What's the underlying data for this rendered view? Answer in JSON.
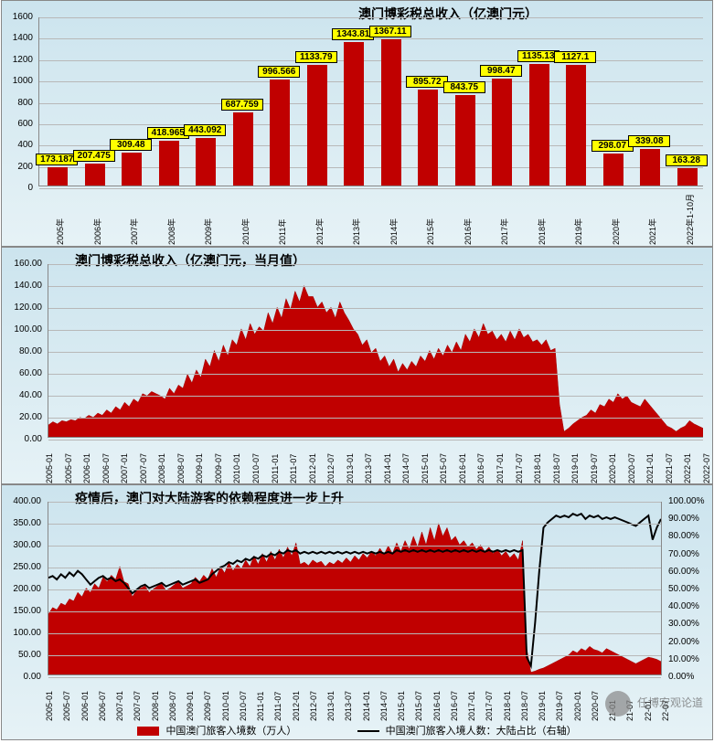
{
  "chart1": {
    "type": "bar",
    "title": "澳门博彩税总收入（亿澳门元）",
    "title_fontsize": 14,
    "ylim": [
      0,
      1600
    ],
    "ytick_step": 200,
    "categories": [
      "2005年",
      "2006年",
      "2007年",
      "2008年",
      "2009年",
      "2010年",
      "2011年",
      "2012年",
      "2013年",
      "2014年",
      "2015年",
      "2016年",
      "2017年",
      "2018年",
      "2019年",
      "2020年",
      "2021年",
      "2022年1-10月"
    ],
    "values": [
      173.187,
      207.475,
      309.48,
      418.965,
      443.092,
      687.759,
      996.566,
      1133.79,
      1343.81,
      1367.11,
      895.72,
      843.75,
      998.47,
      1135.13,
      1127.1,
      298.07,
      339.08,
      163.28
    ],
    "bar_color": "#c00000",
    "label_bg": "#ffff00",
    "label_border": "#000000",
    "grid_color": "#b8b8b8",
    "background_gradient": [
      "#cce4ee",
      "#e6f2f6"
    ],
    "label_fontsize": 10,
    "bar_width_ratio": 0.55
  },
  "chart2": {
    "type": "area",
    "title": "澳门博彩税总收入（亿澳门元，当月值）",
    "title_fontsize": 14,
    "ylim": [
      0.0,
      160.0
    ],
    "ytick_step": 20.0,
    "x_labels": [
      "2005-01",
      "2005-07",
      "2006-01",
      "2006-07",
      "2007-01",
      "2007-07",
      "2008-01",
      "2008-07",
      "2009-01",
      "2009-07",
      "2010-01",
      "2010-07",
      "2011-01",
      "2011-07",
      "2012-01",
      "2012-07",
      "2013-01",
      "2013-07",
      "2014-01",
      "2014-07",
      "2015-01",
      "2015-07",
      "2016-01",
      "2016-07",
      "2017-01",
      "2017-07",
      "2018-01",
      "2018-07",
      "2019-01",
      "2019-07",
      "2020-01",
      "2020-07",
      "2021-01",
      "2021-07",
      "2022-01",
      "2022-07"
    ],
    "values": [
      11,
      14,
      12,
      15,
      14,
      16,
      15,
      18,
      17,
      20,
      18,
      22,
      20,
      25,
      22,
      28,
      25,
      32,
      28,
      35,
      32,
      40,
      38,
      42,
      40,
      38,
      35,
      45,
      40,
      48,
      45,
      58,
      50,
      62,
      55,
      72,
      65,
      80,
      70,
      85,
      75,
      90,
      85,
      100,
      90,
      105,
      95,
      102,
      98,
      115,
      105,
      120,
      110,
      128,
      118,
      135,
      125,
      140,
      130,
      130,
      120,
      125,
      115,
      120,
      110,
      125,
      115,
      108,
      100,
      95,
      85,
      90,
      78,
      82,
      70,
      75,
      65,
      72,
      60,
      68,
      62,
      70,
      65,
      75,
      70,
      80,
      72,
      82,
      75,
      85,
      78,
      88,
      80,
      95,
      88,
      100,
      92,
      105,
      95,
      98,
      90,
      95,
      88,
      98,
      90,
      100,
      92,
      95,
      88,
      90,
      85,
      90,
      80,
      82,
      30,
      5,
      8,
      12,
      15,
      18,
      20,
      25,
      22,
      30,
      28,
      35,
      32,
      40,
      35,
      38,
      32,
      30,
      28,
      35,
      30,
      25,
      20,
      15,
      10,
      8,
      5,
      8,
      10,
      15,
      12,
      10,
      8
    ],
    "area_color": "#c00000",
    "grid_color": "#b8b8b8",
    "background_gradient": [
      "#cce4ee",
      "#e6f2f6"
    ]
  },
  "chart3": {
    "type": "area_with_line",
    "title": "疫情后，澳门对大陆游客的依赖程度进一步上升",
    "title_fontsize": 14,
    "ylim_left": [
      0.0,
      400.0
    ],
    "ytick_step_left": 50.0,
    "ylim_right": [
      0.0,
      100.0
    ],
    "ytick_step_right": 10.0,
    "right_y_format": "percent",
    "x_labels": [
      "2005-01",
      "2005-07",
      "2006-01",
      "2006-07",
      "2007-01",
      "2007-07",
      "2008-01",
      "2008-07",
      "2009-01",
      "2009-07",
      "2010-01",
      "2010-07",
      "2011-01",
      "2011-07",
      "2012-01",
      "2012-07",
      "2013-01",
      "2013-07",
      "2014-01",
      "2014-07",
      "2015-01",
      "2015-07",
      "2016-01",
      "2016-07",
      "2017-01",
      "2017-07",
      "2018-01",
      "2018-07",
      "2019-01",
      "2019-07",
      "2020-01",
      "2020-07",
      "21-01",
      "21-07",
      "22-01",
      "22-07"
    ],
    "area_values": [
      140,
      155,
      150,
      165,
      160,
      175,
      170,
      190,
      180,
      200,
      190,
      210,
      200,
      225,
      215,
      230,
      220,
      250,
      215,
      210,
      180,
      195,
      200,
      205,
      190,
      198,
      205,
      210,
      195,
      200,
      208,
      215,
      200,
      205,
      210,
      225,
      215,
      230,
      220,
      245,
      225,
      250,
      235,
      260,
      240,
      255,
      245,
      265,
      250,
      275,
      255,
      280,
      260,
      285,
      265,
      290,
      270,
      295,
      275,
      305,
      255,
      260,
      252,
      265,
      258,
      262,
      250,
      260,
      255,
      265,
      258,
      270,
      260,
      275,
      265,
      280,
      270,
      285,
      275,
      292,
      278,
      298,
      280,
      305,
      285,
      310,
      290,
      320,
      295,
      330,
      300,
      340,
      310,
      350,
      320,
      340,
      310,
      320,
      300,
      310,
      295,
      305,
      290,
      300,
      285,
      295,
      280,
      290,
      275,
      285,
      270,
      280,
      265,
      310,
      60,
      5,
      8,
      12,
      15,
      20,
      25,
      30,
      35,
      40,
      45,
      55,
      50,
      60,
      55,
      65,
      58,
      55,
      50,
      60,
      55,
      50,
      45,
      40,
      35,
      30,
      25,
      30,
      35,
      40,
      38,
      35,
      30
    ],
    "line_values": [
      56,
      57,
      55,
      58,
      56,
      59,
      57,
      60,
      58,
      55,
      52,
      54,
      56,
      57,
      55,
      56,
      54,
      55,
      53,
      50,
      47,
      49,
      51,
      52,
      50,
      51,
      52,
      53,
      51,
      52,
      53,
      54,
      52,
      53,
      54,
      55,
      53,
      54,
      55,
      58,
      60,
      62,
      63,
      65,
      64,
      66,
      65,
      67,
      66,
      68,
      67,
      69,
      68,
      70,
      69,
      71,
      70,
      72,
      71,
      72,
      70,
      71,
      70,
      71,
      70,
      71,
      70,
      71,
      70,
      71,
      70,
      71,
      70,
      71,
      70,
      71,
      70,
      71,
      70,
      71,
      70,
      71,
      70,
      72,
      71,
      72,
      71,
      72,
      71,
      72,
      71,
      72,
      71,
      72,
      71,
      72,
      71,
      72,
      71,
      72,
      71,
      72,
      71,
      72,
      71,
      72,
      71,
      72,
      71,
      72,
      71,
      72,
      71,
      72,
      10,
      5,
      30,
      60,
      85,
      88,
      90,
      92,
      91,
      92,
      91,
      93,
      92,
      93,
      90,
      92,
      91,
      92,
      90,
      91,
      90,
      91,
      90,
      89,
      88,
      87,
      86,
      88,
      90,
      92,
      78,
      85,
      90
    ],
    "area_color": "#c00000",
    "line_color": "#000000",
    "line_width": 2,
    "grid_color": "#b8b8b8",
    "background_gradient": [
      "#cce4ee",
      "#e6f2f6"
    ],
    "legend": {
      "area_label": "中国澳门旅客入境数（万人）",
      "line_label": "中国澳门旅客入境人数：大陆占比（右轴）"
    },
    "watermark": "任博宏观论道"
  }
}
